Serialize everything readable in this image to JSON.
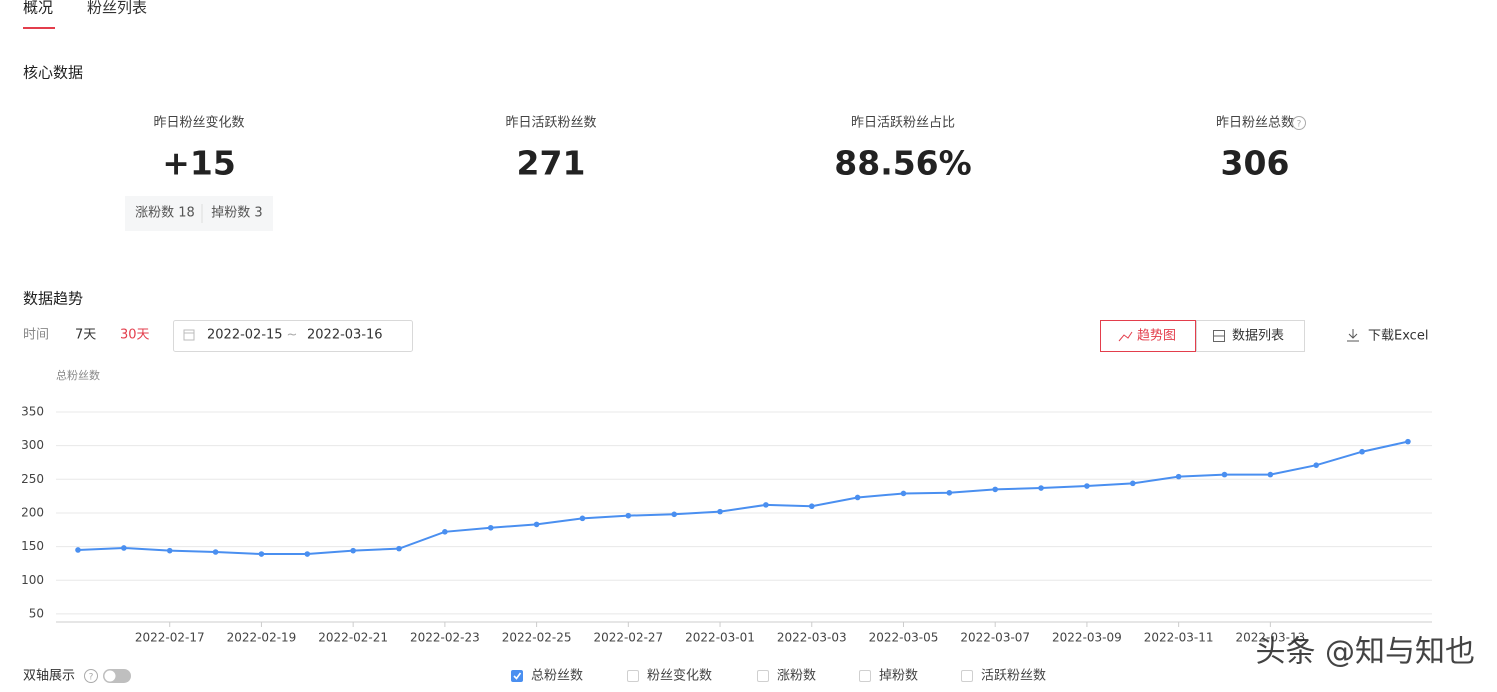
{
  "tabs": [
    "概况",
    "粉丝列表"
  ],
  "core_title": "核心数据",
  "stats": [
    {
      "label": "昨日粉丝变化数",
      "value": "+15"
    },
    {
      "label": "昨日活跃粉丝数",
      "value": "271"
    },
    {
      "label": "昨日活跃粉丝占比",
      "value": "88.56%"
    },
    {
      "label": "昨日粉丝总数",
      "value": "306"
    }
  ],
  "change_detail": [
    "涨粉数 18",
    "掉粉数 3"
  ],
  "trend_title": "数据趋势",
  "time_label": "时间",
  "ranges": [
    "7天",
    "30天"
  ],
  "date_range": {
    "start": "2022-02-15",
    "separator": "~",
    "end": "2022-03-16"
  },
  "view_buttons": [
    "趋势图",
    "数据列表"
  ],
  "download": "下载Excel",
  "dual_axis": "双轴展示",
  "legend_options": [
    "粉丝变化数",
    "涨粉数",
    "掉粉数",
    "活跃粉丝数"
  ],
  "watermark": "头条 @知与知也",
  "chart_data": {
    "type": "line",
    "ylabel": "总粉丝数",
    "categories": [
      null,
      null,
      "2022-02-17",
      null,
      "2022-02-19",
      null,
      "2022-02-21",
      null,
      "2022-02-23",
      null,
      "2022-02-25",
      null,
      "2022-02-27",
      null,
      "2022-03-01",
      null,
      "2022-03-03",
      null,
      "2022-03-05",
      null,
      "2022-03-07",
      null,
      "2022-03-09",
      null,
      "2022-03-11",
      null,
      "2022-03-13",
      null,
      null,
      null
    ],
    "series": [
      {
        "name": "总粉丝数",
        "color": "#4a8ff0",
        "values": [
          145,
          148,
          144,
          142,
          139,
          139,
          144,
          147,
          172,
          178,
          183,
          192,
          196,
          198,
          202,
          212,
          210,
          223,
          229,
          230,
          235,
          237,
          240,
          244,
          254,
          257,
          257,
          271,
          291,
          306
        ]
      }
    ],
    "ylim": [
      38,
      350
    ],
    "yticks": [
      50,
      100,
      150,
      200,
      250,
      300,
      350
    ],
    "grid": true
  }
}
